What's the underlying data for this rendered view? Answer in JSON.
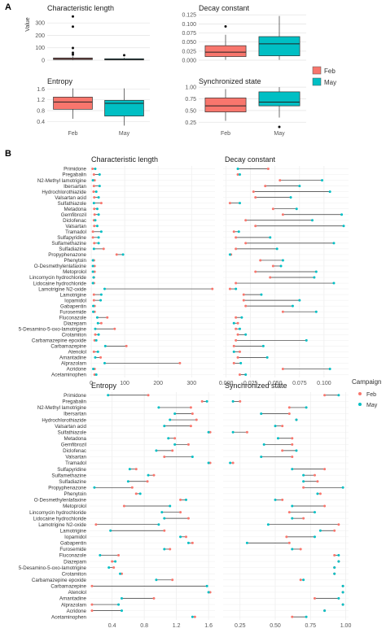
{
  "figure": {
    "panel_a_label": "A",
    "panel_b_label": "B",
    "legend_a": {
      "items": [
        {
          "label": "Feb",
          "color": "#f8766d"
        },
        {
          "label": "May",
          "color": "#00bfc4"
        }
      ]
    },
    "legend_b": {
      "title": "Campaign",
      "items": [
        {
          "label": "Feb",
          "color": "#f8766d"
        },
        {
          "label": "May",
          "color": "#00bfc4"
        }
      ]
    }
  },
  "compounds": [
    "Primidone",
    "Pregabalin",
    "N2-Methyl lamotrigine",
    "Ibersartan",
    "Hydrochlorothiazide",
    "Valsartan acid",
    "Sulfathiazole",
    "Metadona",
    "Gemfibrozil",
    "Diclofenac",
    "Valsartan",
    "Tramadol",
    "Sulfapyridine",
    "Sulfamethazine",
    "Sulfadiazine",
    "Propyphenazone",
    "Phenytoin",
    "O-Desmethylenlafaxine",
    "Metoprolol",
    "Lincomycin hydrochloride",
    "Lidocaine hydrochloride",
    "Lamotrigine N2-oxide",
    "Lamotrigine",
    "Iopamidol",
    "Gabapentin",
    "Furosemide",
    "Fluconazole",
    "Diazepam",
    "5-Desamino-5-oxo-lamotrigine",
    "Crotamiton",
    "Carbamazepine epoxide",
    "Carbamazepine",
    "Atenolol",
    "Amantadine",
    "Alprazolam",
    "Acridone",
    "Acetaminophen"
  ],
  "chart_data": [
    {
      "type": "box",
      "title": "Characteristic length",
      "ylabel": "Value",
      "categories": [
        "Feb",
        "May"
      ],
      "ylim": [
        0,
        380
      ],
      "yticks": [
        0,
        100,
        200,
        300
      ],
      "boxes": [
        {
          "q1": 5,
          "median": 12,
          "q3": 18,
          "whisker_low": 0,
          "whisker_high": 30
        },
        {
          "q1": 2,
          "median": 6,
          "q3": 12,
          "whisker_low": 0,
          "whisker_high": 20
        }
      ],
      "outliers": [
        [
          352,
          270,
          98,
          60,
          45
        ],
        [
          40
        ]
      ]
    },
    {
      "type": "box",
      "title": "Decay constant",
      "categories": [
        "Feb",
        "May"
      ],
      "ylim": [
        0,
        0.13
      ],
      "yticks": [
        0.0,
        0.025,
        0.05,
        0.075,
        0.1,
        0.125
      ],
      "boxes": [
        {
          "q1": 0.01,
          "median": 0.022,
          "q3": 0.04,
          "whisker_low": 0.001,
          "whisker_high": 0.07
        },
        {
          "q1": 0.012,
          "median": 0.045,
          "q3": 0.065,
          "whisker_low": 0.001,
          "whisker_high": 0.122
        }
      ],
      "outliers": [
        [
          0.093
        ],
        []
      ]
    },
    {
      "type": "box",
      "title": "Entropy",
      "categories": [
        "Feb",
        "May"
      ],
      "ylim": [
        0.2,
        1.7
      ],
      "yticks": [
        0.4,
        0.8,
        1.2,
        1.6
      ],
      "boxes": [
        {
          "q1": 0.85,
          "median": 1.12,
          "q3": 1.3,
          "whisker_low": 0.5,
          "whisker_high": 1.62
        },
        {
          "q1": 0.6,
          "median": 1.07,
          "q3": 1.18,
          "whisker_low": 0.25,
          "whisker_high": 1.62
        }
      ],
      "outliers": [
        [],
        []
      ]
    },
    {
      "type": "box",
      "title": "Synchronized state",
      "categories": [
        "Feb",
        "May"
      ],
      "ylim": [
        0.15,
        1.02
      ],
      "yticks": [
        0.25,
        0.5,
        0.75,
        1.0
      ],
      "boxes": [
        {
          "q1": 0.47,
          "median": 0.6,
          "q3": 0.77,
          "whisker_low": 0.28,
          "whisker_high": 0.96
        },
        {
          "q1": 0.6,
          "median": 0.68,
          "q3": 0.9,
          "whisker_low": 0.35,
          "whisker_high": 1.0
        }
      ],
      "outliers": [
        [],
        [
          0.15
        ]
      ]
    },
    {
      "type": "dumbbell",
      "title": "Characteristic length",
      "xlim": [
        -5,
        370
      ],
      "xticks": [
        0,
        100,
        200,
        300
      ],
      "feb": [
        4,
        8,
        10,
        8,
        7,
        9,
        30,
        9,
        10,
        8,
        9,
        5,
        5,
        9,
        37,
        76,
        8,
        10,
        10,
        8,
        8,
        362,
        8,
        8,
        10,
        10,
        48,
        30,
        70,
        12,
        10,
        105,
        8,
        28,
        265,
        10,
        10
      ],
      "may": [
        12,
        25,
        5,
        25,
        15,
        22,
        8,
        18,
        22,
        12,
        18,
        30,
        22,
        22,
        8,
        95,
        5,
        5,
        5,
        7,
        5,
        40,
        30,
        28,
        6,
        6,
        18,
        20,
        12,
        22,
        15,
        42,
        20,
        12,
        40,
        6,
        15
      ]
    },
    {
      "type": "dumbbell",
      "title": "Decay constant",
      "xlim": [
        -0.003,
        0.125
      ],
      "xticks": [
        0.0,
        0.025,
        0.05,
        0.075,
        0.1
      ],
      "feb": [
        0.043,
        0.012,
        0.055,
        0.04,
        0.028,
        0.03,
        0.004,
        0.048,
        0.058,
        0.02,
        0.03,
        0.008,
        0.01,
        0.02,
        0.01,
        0.005,
        0.035,
        0.048,
        0.03,
        0.045,
        0.01,
        0.004,
        0.018,
        0.018,
        0.02,
        0.058,
        0.01,
        0.012,
        0.01,
        0.012,
        0.01,
        0.008,
        0.014,
        0.012,
        0.008,
        0.058,
        0.014
      ],
      "may": [
        0.012,
        0.014,
        0.098,
        0.075,
        0.106,
        0.066,
        0.014,
        0.072,
        0.118,
        0.088,
        0.12,
        0.013,
        0.045,
        0.11,
        0.052,
        0.004,
        0.058,
        0.056,
        0.092,
        0.09,
        0.11,
        0.01,
        0.036,
        0.075,
        0.068,
        0.092,
        0.016,
        0.008,
        0.014,
        0.02,
        0.082,
        0.038,
        0.008,
        0.042,
        0.015,
        0.106,
        0.02
      ]
    },
    {
      "type": "dumbbell",
      "title": "Entropy",
      "xlim": [
        0.12,
        1.68
      ],
      "xticks": [
        0.4,
        0.8,
        1.2,
        1.6
      ],
      "feb": [
        0.85,
        1.52,
        1.38,
        1.4,
        1.45,
        1.38,
        1.62,
        1.18,
        1.35,
        1.15,
        1.05,
        1.62,
        0.7,
        0.92,
        0.84,
        0.65,
        0.7,
        1.25,
        0.55,
        1.25,
        1.35,
        0.2,
        1.05,
        1.32,
        1.4,
        1.12,
        0.48,
        0.4,
        0.42,
        0.52,
        1.15,
        0.15,
        1.62,
        0.92,
        0.15,
        0.15,
        1.43
      ],
      "may": [
        0.35,
        1.58,
        0.98,
        1.18,
        1.12,
        1.05,
        1.6,
        1.1,
        1.18,
        0.95,
        1.4,
        1.6,
        0.62,
        0.85,
        0.6,
        0.18,
        0.75,
        1.32,
        1.12,
        1.02,
        1.05,
        0.98,
        0.38,
        1.25,
        1.35,
        1.05,
        0.25,
        0.44,
        0.36,
        0.5,
        0.95,
        1.58,
        1.6,
        0.52,
        0.48,
        0.52,
        1.4
      ]
    },
    {
      "type": "dumbbell",
      "title": "Synchronized state",
      "xlim": [
        0.13,
        1.02
      ],
      "xticks": [
        0.25,
        0.5,
        0.75,
        1.0
      ],
      "feb": [
        0.85,
        0.25,
        0.6,
        0.6,
        0.65,
        0.55,
        0.3,
        0.62,
        0.62,
        0.55,
        0.62,
        0.2,
        0.85,
        0.78,
        0.8,
        0.7,
        0.82,
        0.55,
        0.85,
        0.6,
        0.7,
        0.95,
        0.92,
        0.58,
        0.6,
        0.68,
        0.92,
        0.95,
        0.92,
        0.92,
        0.68,
        0.98,
        0.98,
        0.78,
        0.98,
        0.85,
        0.62
      ],
      "may": [
        0.95,
        0.2,
        0.72,
        0.4,
        0.65,
        0.5,
        0.2,
        0.52,
        0.42,
        0.65,
        0.4,
        0.18,
        0.62,
        0.7,
        0.7,
        0.98,
        0.8,
        0.5,
        0.62,
        0.78,
        0.62,
        0.45,
        0.82,
        0.78,
        0.3,
        0.62,
        0.95,
        0.95,
        0.92,
        0.92,
        0.7,
        0.98,
        0.98,
        0.95,
        0.98,
        0.85,
        0.72
      ]
    }
  ]
}
